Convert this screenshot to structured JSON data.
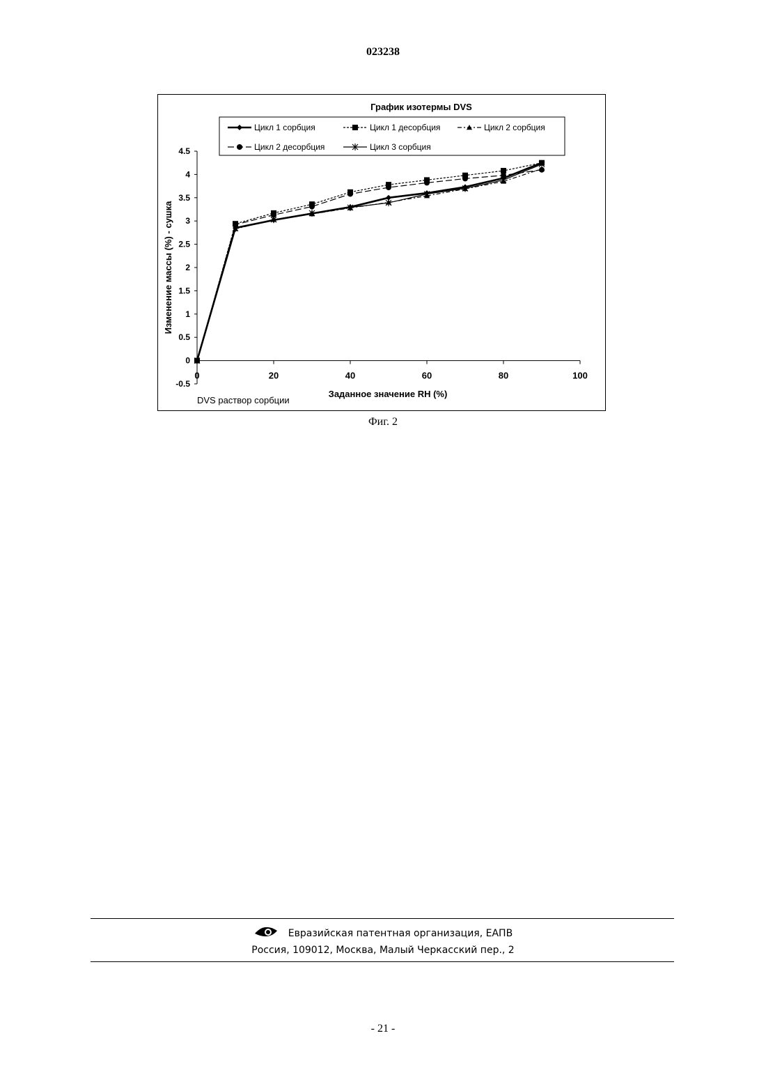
{
  "header": {
    "doc_number": "023238"
  },
  "figure": {
    "caption": "Фиг. 2"
  },
  "chart_data": {
    "type": "line",
    "title": "График изотермы DVS",
    "xlabel": "Заданное значение RH (%)",
    "ylabel": "Изменение массы (%) - сушка",
    "annotation": "DVS раствор сорбции",
    "xlim": [
      0,
      100
    ],
    "ylim": [
      -0.5,
      4.5
    ],
    "xticks": [
      0,
      20,
      40,
      60,
      80,
      100
    ],
    "yticks": [
      -0.5,
      0,
      0.5,
      1,
      1.5,
      2,
      2.5,
      3,
      3.5,
      4,
      4.5
    ],
    "grid": false,
    "legend_position": "top",
    "series": [
      {
        "name": "Цикл 1 сорбция",
        "marker": "diamond",
        "dash": "solid",
        "x": [
          0,
          10,
          20,
          30,
          40,
          50,
          60,
          70,
          80,
          90
        ],
        "y": [
          0,
          2.85,
          3.02,
          3.16,
          3.3,
          3.5,
          3.6,
          3.73,
          3.92,
          4.25
        ]
      },
      {
        "name": "Цикл 1 десорбция",
        "marker": "square",
        "dash": "dotted",
        "x": [
          90,
          80,
          70,
          60,
          50,
          40,
          30,
          20,
          10,
          0
        ],
        "y": [
          4.25,
          4.08,
          3.98,
          3.88,
          3.78,
          3.62,
          3.36,
          3.17,
          2.94,
          0
        ]
      },
      {
        "name": "Цикл 2 сорбция",
        "marker": "triangle",
        "dash": "dashdot",
        "x": [
          0,
          10,
          20,
          30,
          40,
          50,
          60,
          70,
          80,
          90
        ],
        "y": [
          0,
          2.83,
          3.03,
          3.15,
          3.28,
          3.4,
          3.54,
          3.69,
          3.85,
          4.12
        ]
      },
      {
        "name": "Цикл 2 десорбция",
        "marker": "circle",
        "dash": "dashed",
        "x": [
          90,
          80,
          70,
          60,
          50,
          40,
          30,
          20,
          10,
          0
        ],
        "y": [
          4.1,
          3.98,
          3.91,
          3.82,
          3.72,
          3.58,
          3.31,
          3.13,
          2.92,
          0
        ]
      },
      {
        "name": "Цикл 3 сорбция",
        "marker": "star",
        "dash": "solid-thin",
        "x": [
          0,
          10,
          20,
          30,
          40,
          50,
          60,
          70,
          80,
          90
        ],
        "y": [
          0,
          2.84,
          3.03,
          3.17,
          3.29,
          3.39,
          3.58,
          3.7,
          3.88,
          4.22
        ]
      }
    ]
  },
  "footer": {
    "org": "Евразийская патентная организация, ЕАПВ",
    "address": "Россия, 109012, Москва, Малый Черкасский пер., 2",
    "logo_icon": "eapo-eye-logo"
  },
  "page_number": "- 21 -"
}
